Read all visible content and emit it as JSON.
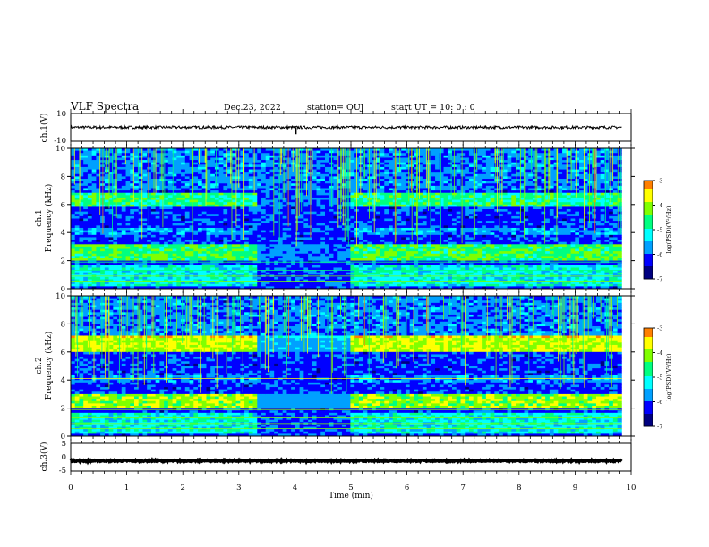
{
  "header": {
    "title": "VLF Spectra",
    "date": "Dec.23, 2022",
    "station": "station= OUJ",
    "start": "start  UT =   10: 0  : 0"
  },
  "colors": {
    "colormap": [
      "#000080",
      "#0000ff",
      "#00a0ff",
      "#00ffff",
      "#00ff80",
      "#80ff00",
      "#ffff00",
      "#ff8000",
      "#ff0000",
      "#ffffff"
    ],
    "background": "#000030",
    "trace": "#000000"
  },
  "chart_data": [
    {
      "type": "line",
      "name": "ch1-waveform",
      "ylabel": "ch.1(V)",
      "ylim": [
        -10,
        10
      ],
      "yticks": [
        "10",
        "-10"
      ],
      "x_range_min": [
        0,
        9.83
      ],
      "mean_value": 0,
      "noise_amplitude": 1.0,
      "spike": {
        "x_min": 4.02,
        "y_min": -5
      }
    },
    {
      "type": "heatmap",
      "name": "ch1-spectrogram",
      "ylabel": "ch.1\nFrequency (kHz)",
      "ylim": [
        0,
        10
      ],
      "yticks": [
        "10",
        "8",
        "6",
        "4",
        "2",
        "0"
      ],
      "x_range_min": [
        0,
        9.83
      ],
      "bands_khz": [
        {
          "lo": 5.9,
          "hi": 6.9,
          "level": 0.55
        },
        {
          "lo": 2.0,
          "hi": 3.2,
          "level": 0.6
        },
        {
          "lo": 3.9,
          "hi": 4.3,
          "level": 0.3
        },
        {
          "lo": 0.2,
          "hi": 1.6,
          "level": 0.45
        }
      ],
      "quiet_interval_min": [
        3.3,
        5.0
      ],
      "colorbar": {
        "label": "log(PSD)(V²/Hz)",
        "range": [
          -7,
          -3
        ],
        "ticks": [
          "-3",
          "-4",
          "-5",
          "-6",
          "-7"
        ]
      }
    },
    {
      "type": "heatmap",
      "name": "ch2-spectrogram",
      "ylabel": "ch.2\nFrequency (kHz)",
      "ylim": [
        0,
        10
      ],
      "yticks": [
        "10",
        "8",
        "6",
        "4",
        "2",
        "0"
      ],
      "x_range_min": [
        0,
        9.83
      ],
      "bands_khz": [
        {
          "lo": 6.0,
          "hi": 7.2,
          "level": 0.75
        },
        {
          "lo": 2.0,
          "hi": 3.0,
          "level": 0.7
        },
        {
          "lo": 3.9,
          "hi": 4.3,
          "level": 0.3
        },
        {
          "lo": 0.2,
          "hi": 1.6,
          "level": 0.45
        }
      ],
      "quiet_interval_min": [
        3.3,
        5.0
      ],
      "colorbar": {
        "label": "log(PSD)(V²/Hz)",
        "range": [
          -7,
          -3
        ],
        "ticks": [
          "-3",
          "-4",
          "-5",
          "-6",
          "-7"
        ]
      }
    },
    {
      "type": "line",
      "name": "ch3-waveform",
      "ylabel": "ch.3(V)",
      "ylim": [
        -5,
        5
      ],
      "yticks": [
        "5",
        "0",
        "-5"
      ],
      "x_range_min": [
        0,
        9.83
      ],
      "mean_value": -1.3,
      "noise_amplitude": 0.25
    }
  ],
  "xaxis": {
    "label": "Time (min)",
    "ticks": [
      "0",
      "1",
      "2",
      "3",
      "4",
      "5",
      "6",
      "7",
      "8",
      "9",
      "10"
    ],
    "range": [
      0,
      10
    ]
  }
}
